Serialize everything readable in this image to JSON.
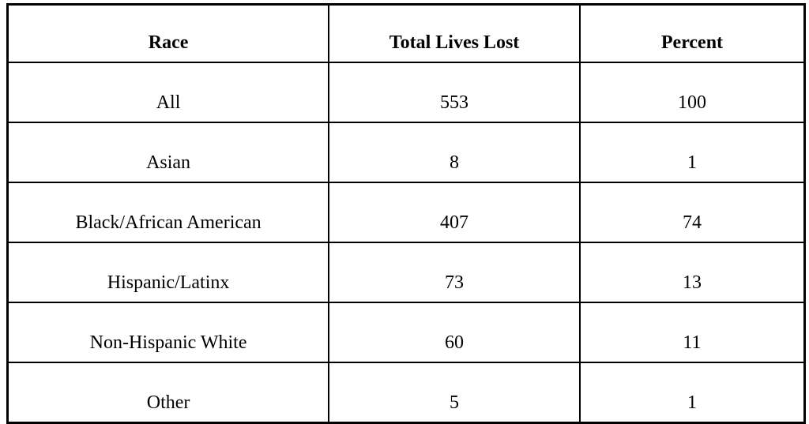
{
  "table": {
    "columns": [
      {
        "label": "Race"
      },
      {
        "label": "Total Lives Lost"
      },
      {
        "label": "Percent"
      }
    ],
    "rows": [
      {
        "race": "All",
        "total_lives_lost": "553",
        "percent": "100"
      },
      {
        "race": "Asian",
        "total_lives_lost": "8",
        "percent": "1"
      },
      {
        "race": "Black/African American",
        "total_lives_lost": "407",
        "percent": "74"
      },
      {
        "race": "Hispanic/Latinx",
        "total_lives_lost": "73",
        "percent": "13"
      },
      {
        "race": "Non-Hispanic White",
        "total_lives_lost": "60",
        "percent": "11"
      },
      {
        "race": "Other",
        "total_lives_lost": "5",
        "percent": "1"
      }
    ]
  },
  "colors": {
    "border": "#000000",
    "text": "#000000",
    "background": "#ffffff"
  },
  "chart_data": {
    "type": "table",
    "title": "",
    "columns": [
      "Race",
      "Total Lives Lost",
      "Percent"
    ],
    "rows": [
      [
        "All",
        553,
        100
      ],
      [
        "Asian",
        8,
        1
      ],
      [
        "Black/African American",
        407,
        74
      ],
      [
        "Hispanic/Latinx",
        73,
        13
      ],
      [
        "Non-Hispanic White",
        60,
        11
      ],
      [
        "Other",
        5,
        1
      ]
    ]
  }
}
